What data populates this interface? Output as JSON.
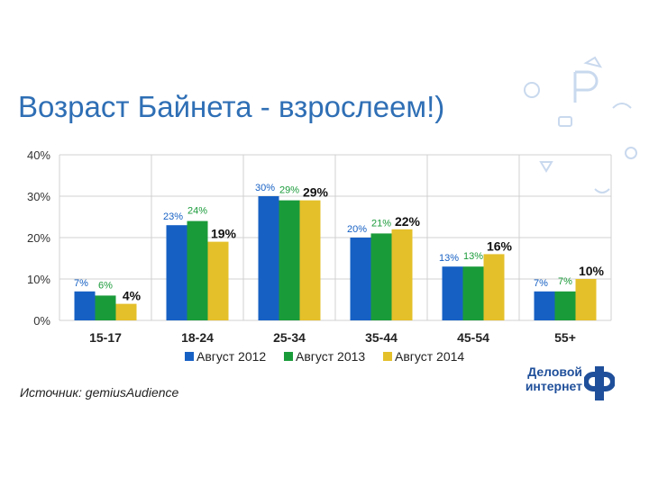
{
  "title": "Возраст Байнета - взрослеем!)",
  "source": "Источник: gemiusAudience",
  "logo": {
    "line1": "Деловой",
    "line2": "интернет",
    "icon": "df-logo-icon"
  },
  "colors": {
    "title": "#2f6fb5",
    "s2012": "#1660c4",
    "s2013": "#1a9b3a",
    "s2014": "#e4c02a",
    "logo": "#1f4f9a"
  },
  "chart_data": {
    "type": "bar",
    "categories": [
      "15-17",
      "18-24",
      "25-34",
      "35-44",
      "45-54",
      "55+"
    ],
    "series": [
      {
        "name": "Август 2012",
        "values": [
          7,
          23,
          30,
          20,
          13,
          7
        ],
        "labels": [
          "7%",
          "23%",
          "30%",
          "20%",
          "13%",
          "7%"
        ]
      },
      {
        "name": "Август 2013",
        "values": [
          6,
          24,
          29,
          21,
          13,
          7
        ],
        "labels": [
          "6%",
          "24%",
          "29%",
          "21%",
          "13%",
          "7%"
        ]
      },
      {
        "name": "Август 2014",
        "values": [
          4,
          19,
          29,
          22,
          16,
          10
        ],
        "labels": [
          "4%",
          "19%",
          "29%",
          "22%",
          "16%",
          "10%"
        ]
      }
    ],
    "yticks": [
      "0%",
      "10%",
      "20%",
      "30%",
      "40%"
    ],
    "ylim": [
      0,
      40
    ],
    "grid": true,
    "legend": "bottom"
  }
}
